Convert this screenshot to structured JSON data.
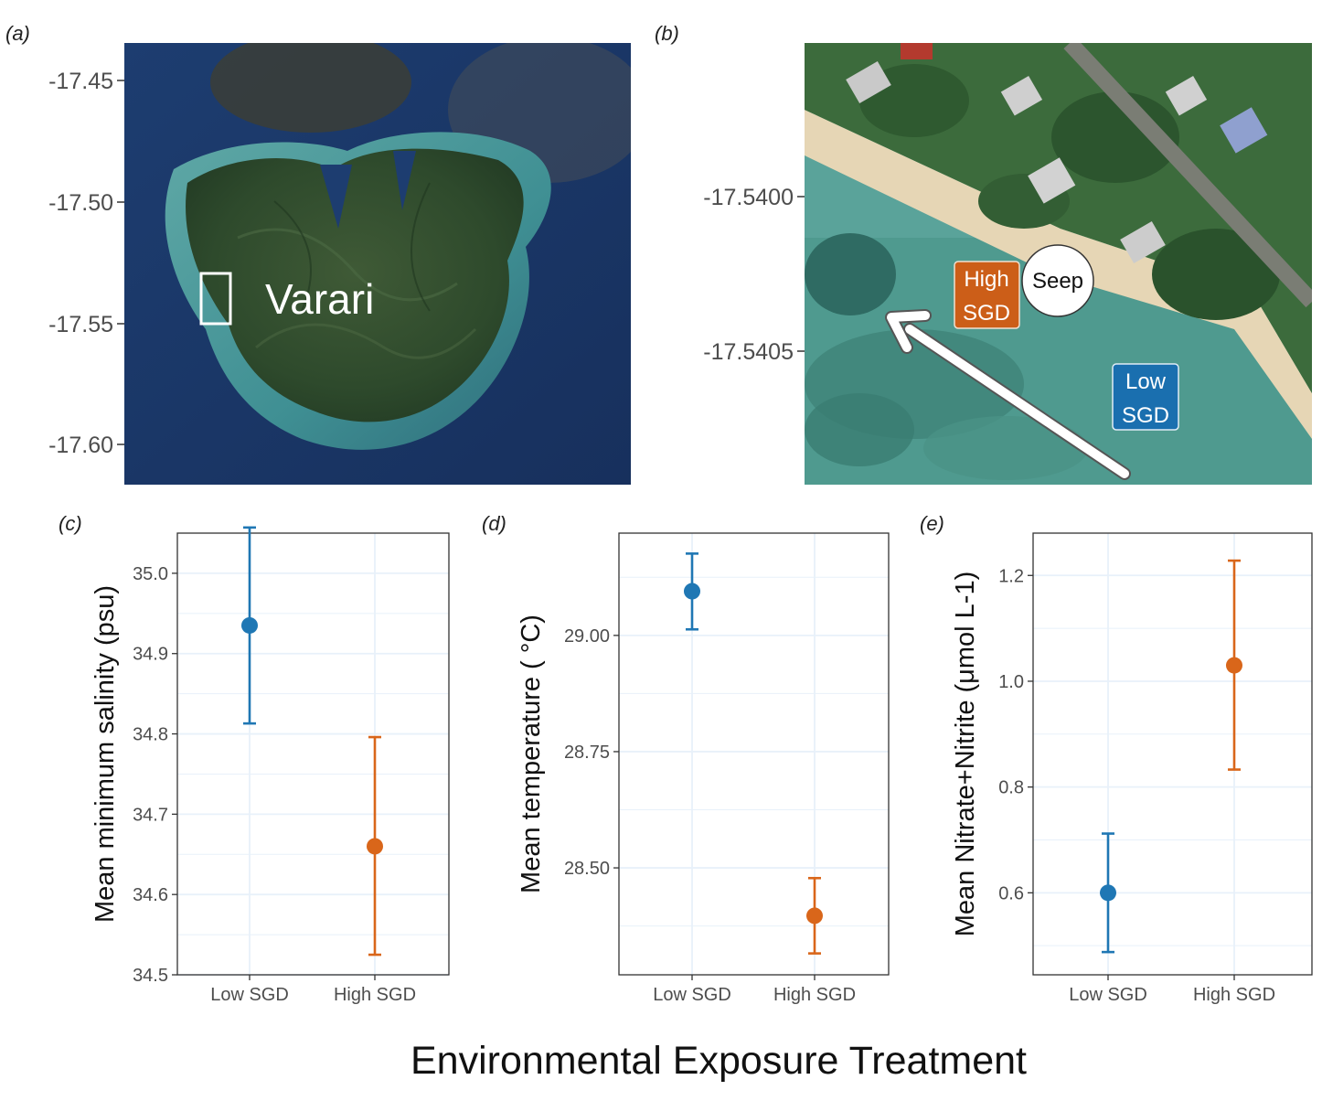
{
  "panels": {
    "a": {
      "tag": "(a)",
      "site_label": "Varari",
      "lat_ticks": [
        "-17.45",
        "-17.50",
        "-17.55",
        "-17.60"
      ]
    },
    "b": {
      "tag": "(b)",
      "lat_ticks": [
        "-17.5400",
        "-17.5405"
      ],
      "high_label_line1": "High",
      "high_label_line2": "SGD",
      "seep_label": "Seep",
      "low_label_line1": "Low",
      "low_label_line2": "SGD"
    },
    "c": {
      "tag": "(c)"
    },
    "d": {
      "tag": "(d)"
    },
    "e": {
      "tag": "(e)"
    }
  },
  "shared_xlabel": "Environmental Exposure Treatment",
  "colors": {
    "low": "#1f77b4",
    "high": "#d9661a",
    "grid": "#e8f1fa",
    "water": "#2a6f8f"
  },
  "chart_data": [
    {
      "type": "scatter",
      "panel": "c",
      "categories": [
        "Low SGD",
        "High SGD"
      ],
      "ylabel": "Mean minimum salinity (psu)",
      "ylim": [
        34.5,
        35.05
      ],
      "yticks": [
        34.5,
        34.6,
        34.7,
        34.8,
        34.9,
        35.0
      ],
      "ytick_labels": [
        "34.5",
        "34.6",
        "34.7",
        "34.8",
        "34.9",
        "35.0"
      ],
      "points": [
        {
          "category": "Low SGD",
          "mean": 34.935,
          "lower": 34.813,
          "upper": 35.057,
          "color": "#1f77b4"
        },
        {
          "category": "High SGD",
          "mean": 34.66,
          "lower": 34.525,
          "upper": 34.796,
          "color": "#d9661a"
        }
      ],
      "grid": true
    },
    {
      "type": "scatter",
      "panel": "d",
      "categories": [
        "Low SGD",
        "High SGD"
      ],
      "ylabel": "Mean temperature ( °C)",
      "ylim": [
        28.27,
        29.22
      ],
      "yticks": [
        28.5,
        28.75,
        29.0
      ],
      "ytick_labels": [
        "28.50",
        "28.75",
        "29.00"
      ],
      "points": [
        {
          "category": "Low SGD",
          "mean": 29.095,
          "lower": 29.013,
          "upper": 29.176,
          "color": "#1f77b4"
        },
        {
          "category": "High SGD",
          "mean": 28.397,
          "lower": 28.316,
          "upper": 28.478,
          "color": "#d9661a"
        }
      ],
      "grid": true
    },
    {
      "type": "scatter",
      "panel": "e",
      "categories": [
        "Low SGD",
        "High SGD"
      ],
      "ylabel": "Mean Nitrate+Nitrite (μmol L-1)",
      "ylim": [
        0.445,
        1.28
      ],
      "yticks": [
        0.6,
        0.8,
        1.0,
        1.2
      ],
      "ytick_labels": [
        "0.6",
        "0.8",
        "1.0",
        "1.2"
      ],
      "points": [
        {
          "category": "Low SGD",
          "mean": 0.6,
          "lower": 0.488,
          "upper": 0.712,
          "color": "#1f77b4"
        },
        {
          "category": "High SGD",
          "mean": 1.03,
          "lower": 0.833,
          "upper": 1.228,
          "color": "#d9661a"
        }
      ],
      "grid": true
    }
  ]
}
